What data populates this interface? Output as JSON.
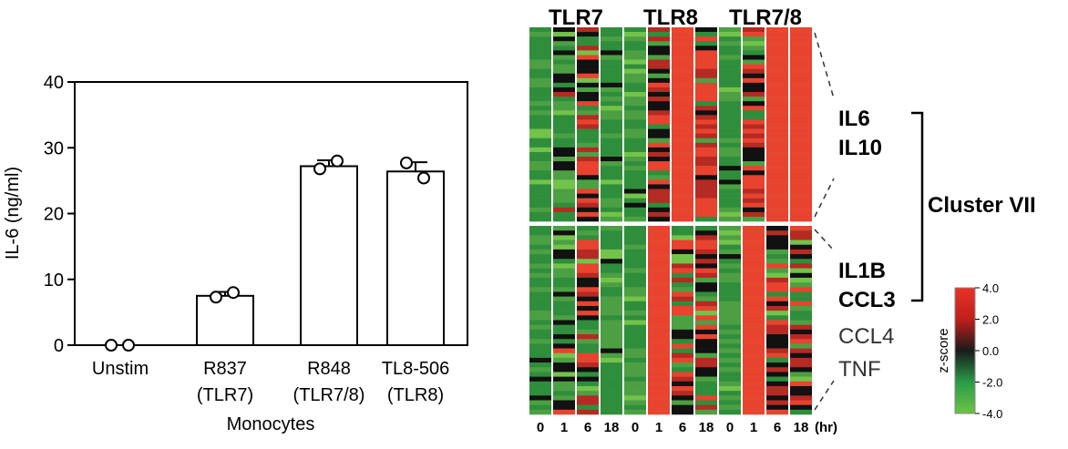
{
  "chart_data": [
    {
      "type": "bar",
      "title": "",
      "ylabel": "IL-6 (ng/ml)",
      "xlabel": "Monocytes",
      "ylim": [
        0,
        40
      ],
      "yticks": [
        0,
        10,
        20,
        30,
        40
      ],
      "categories": [
        {
          "name": "Unstim",
          "sub": ""
        },
        {
          "name": "R837",
          "sub": "(TLR7)"
        },
        {
          "name": "R848",
          "sub": "(TLR7/8)"
        },
        {
          "name": "TL8-506",
          "sub": "(TLR8)"
        }
      ],
      "values": [
        0.0,
        7.5,
        27.2,
        26.4
      ],
      "errors": [
        0.0,
        0.6,
        0.9,
        1.4
      ],
      "points": [
        [
          0.0,
          0.0
        ],
        [
          7.3,
          8.0
        ],
        [
          26.8,
          28.0
        ],
        [
          27.7,
          25.4
        ]
      ],
      "grid": false,
      "bar_fill": "#ffffff",
      "bar_stroke": "#000000"
    },
    {
      "type": "heatmap",
      "groups": [
        "TLR7",
        "TLR8",
        "TLR7/8"
      ],
      "timepoints": [
        "0",
        "1",
        "6",
        "18"
      ],
      "time_unit": "(hr)",
      "top_genes": [
        "IL6",
        "IL10"
      ],
      "bottom_genes_bold": [
        "IL1B",
        "CCL3"
      ],
      "bottom_genes_normal": [
        "CCL4",
        "TNF"
      ],
      "cluster_label": "Cluster VII",
      "colorbar": {
        "label": "z-score",
        "ticks": [
          "4.0",
          "2.0",
          "0.0",
          "-2.0",
          "-4.0"
        ],
        "colors": [
          "#e8322a",
          "#c01f1b",
          "#1a1a1a",
          "#2a9a4a",
          "#6cc444"
        ]
      },
      "colors": {
        "red": "#e8432f",
        "dark_red": "#b52a22",
        "black": "#111111",
        "dark_green": "#2f8e3b",
        "green": "#4ca043",
        "light_green": "#73c34a"
      }
    }
  ]
}
